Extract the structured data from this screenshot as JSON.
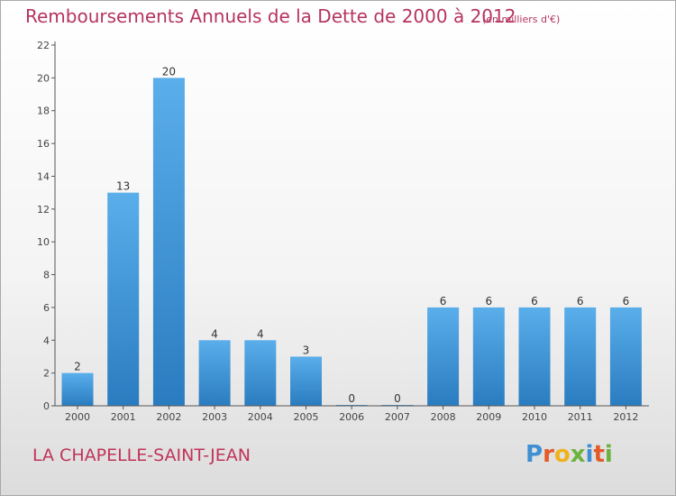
{
  "title": "Remboursements Annuels de la Dette de 2000 à 2012",
  "subtitle": "(en milliers d'€)",
  "location": "LA CHAPELLE-SAINT-JEAN",
  "logo": {
    "text": "Proxiti",
    "letters": [
      "P",
      "r",
      "o",
      "x",
      "i",
      "t",
      "i"
    ]
  },
  "colors": {
    "title": "#b5345f",
    "bar_top": "#5aaeea",
    "bar_bottom": "#2a7cc0",
    "axis": "#555555"
  },
  "chart_data": {
    "type": "bar",
    "title": "Remboursements Annuels de la Dette de 2000 à 2012",
    "subtitle": "(en milliers d'€)",
    "xlabel": "",
    "ylabel": "",
    "categories": [
      "2000",
      "2001",
      "2002",
      "2003",
      "2004",
      "2005",
      "2006",
      "2007",
      "2008",
      "2009",
      "2010",
      "2011",
      "2012"
    ],
    "values": [
      2,
      13,
      20,
      4,
      4,
      3,
      0,
      0,
      6,
      6,
      6,
      6,
      6
    ],
    "ylim": [
      0,
      22
    ],
    "yticks": [
      0,
      2,
      4,
      6,
      8,
      10,
      12,
      14,
      16,
      18,
      20,
      22
    ],
    "grid": false,
    "legend": "none"
  }
}
